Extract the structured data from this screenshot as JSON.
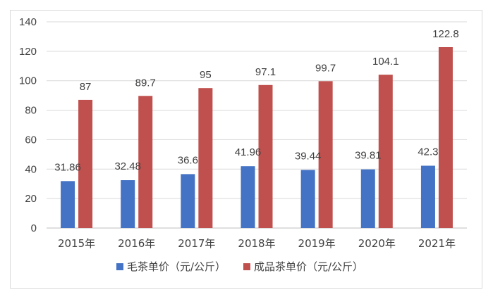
{
  "chart_data": {
    "type": "bar",
    "title": "",
    "xlabel": "",
    "ylabel": "",
    "categories": [
      "2015年",
      "2016年",
      "2017年",
      "2018年",
      "2019年",
      "2020年",
      "2021年"
    ],
    "series": [
      {
        "name": "毛茶单价（元/公斤）",
        "color": "#4472c4",
        "values": [
          31.86,
          32.48,
          36.6,
          41.96,
          39.44,
          39.81,
          42.3
        ],
        "labels": [
          "31.86",
          "32.48",
          "36.6",
          "41.96",
          "39.44",
          "39.81",
          "42.3"
        ]
      },
      {
        "name": "成品茶单价（元/公斤）",
        "color": "#c0504d",
        "values": [
          87,
          89.7,
          95,
          97.1,
          99.7,
          104.1,
          122.8
        ],
        "labels": [
          "87",
          "89.7",
          "95",
          "97.1",
          "99.7",
          "104.1",
          "122.8"
        ]
      }
    ],
    "yticks": [
      "0",
      "20",
      "40",
      "60",
      "80",
      "100",
      "120",
      "140"
    ],
    "ylim": [
      0,
      140
    ],
    "grid": true,
    "legend_position": "bottom"
  }
}
